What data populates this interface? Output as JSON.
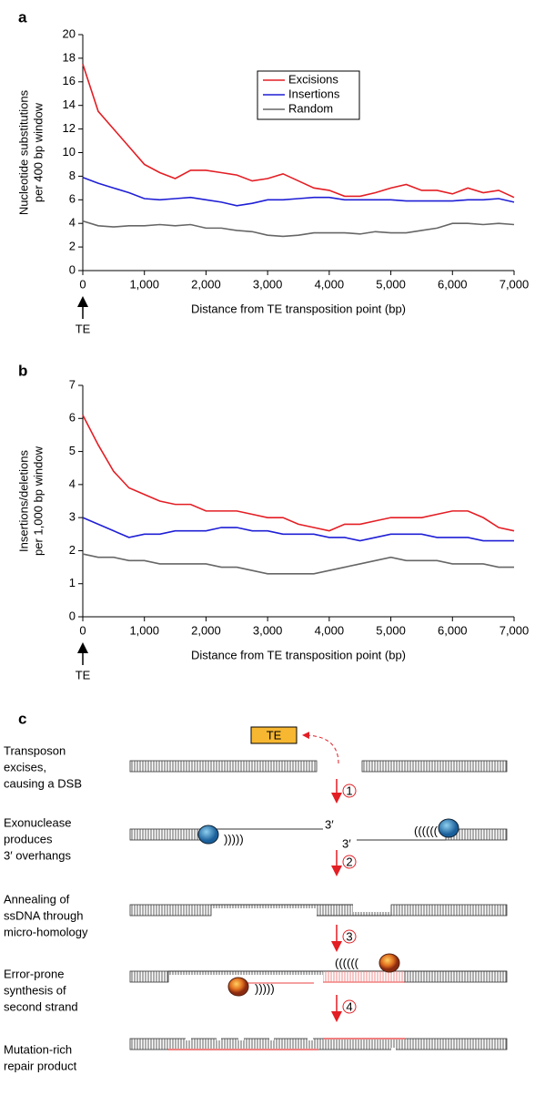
{
  "chart_data": [
    {
      "type": "line",
      "panel": "a",
      "ylabel": [
        "Nucleotide substitutions",
        "per 400 bp window"
      ],
      "xlabel": "Distance from TE transposition point (bp)",
      "annotation": "TE",
      "x": [
        0,
        250,
        500,
        750,
        1000,
        1250,
        1500,
        1750,
        2000,
        2250,
        2500,
        2750,
        3000,
        3250,
        3500,
        3750,
        4000,
        4250,
        4500,
        4750,
        5000,
        5250,
        5500,
        5750,
        6000,
        6250,
        6500,
        6750,
        7000
      ],
      "series": [
        {
          "name": "Excisions",
          "color": "#e31e24",
          "values": [
            17.5,
            13.5,
            12,
            10.5,
            9,
            8.3,
            7.8,
            8.5,
            8.5,
            8.3,
            8.1,
            7.6,
            7.8,
            8.2,
            7.6,
            7.0,
            6.8,
            6.3,
            6.3,
            6.6,
            7.0,
            7.3,
            6.8,
            6.8,
            6.5,
            7.0,
            6.6,
            6.8,
            6.2
          ]
        },
        {
          "name": "Insertions",
          "color": "#1f1fd6",
          "values": [
            7.9,
            7.4,
            7.0,
            6.6,
            6.1,
            6.0,
            6.1,
            6.2,
            6.0,
            5.8,
            5.5,
            5.7,
            6.0,
            6.0,
            6.1,
            6.2,
            6.2,
            6.0,
            6.0,
            6.0,
            6.0,
            5.9,
            5.9,
            5.9,
            5.9,
            6.0,
            6.0,
            6.1,
            5.8
          ]
        },
        {
          "name": "Random",
          "color": "#666666",
          "values": [
            4.2,
            3.8,
            3.7,
            3.8,
            3.8,
            3.9,
            3.8,
            3.9,
            3.6,
            3.6,
            3.4,
            3.3,
            3.0,
            2.9,
            3.0,
            3.2,
            3.2,
            3.2,
            3.1,
            3.3,
            3.2,
            3.2,
            3.4,
            3.6,
            4.0,
            4.0,
            3.9,
            4.0,
            3.9
          ]
        }
      ],
      "xlim": [
        0,
        7000
      ],
      "xticks": [
        0,
        {
          "value": 1000,
          "label": "1,000"
        },
        {
          "value": 2000,
          "label": "2,000"
        },
        {
          "value": 3000,
          "label": "3,000"
        },
        {
          "value": 4000,
          "label": "4,000"
        },
        {
          "value": 5000,
          "label": "5,000"
        },
        {
          "value": 6000,
          "label": "6,000"
        },
        {
          "value": 7000,
          "label": "7,000"
        }
      ],
      "ylim": [
        0,
        20
      ],
      "yticks": [
        0,
        2,
        4,
        6,
        8,
        10,
        12,
        14,
        16,
        18,
        20
      ],
      "legend": "upper center"
    },
    {
      "type": "line",
      "panel": "b",
      "ylabel": [
        "Insertions/deletions",
        "per 1,000 bp window"
      ],
      "xlabel": "Distance from TE transposition point (bp)",
      "annotation": "TE",
      "x": [
        0,
        250,
        500,
        750,
        1000,
        1250,
        1500,
        1750,
        2000,
        2250,
        2500,
        2750,
        3000,
        3250,
        3500,
        3750,
        4000,
        4250,
        4500,
        4750,
        5000,
        5250,
        5500,
        5750,
        6000,
        6250,
        6500,
        6750,
        7000
      ],
      "series": [
        {
          "color": "#e31e24",
          "values": [
            6.1,
            5.2,
            4.4,
            3.9,
            3.7,
            3.5,
            3.4,
            3.4,
            3.2,
            3.2,
            3.2,
            3.1,
            3.0,
            3.0,
            2.8,
            2.7,
            2.6,
            2.8,
            2.8,
            2.9,
            3.0,
            3.0,
            3.0,
            3.1,
            3.2,
            3.2,
            3.0,
            2.7,
            2.6
          ]
        },
        {
          "color": "#1f1fd6",
          "values": [
            3.0,
            2.8,
            2.6,
            2.4,
            2.5,
            2.5,
            2.6,
            2.6,
            2.6,
            2.7,
            2.7,
            2.6,
            2.6,
            2.5,
            2.5,
            2.5,
            2.4,
            2.4,
            2.3,
            2.4,
            2.5,
            2.5,
            2.5,
            2.4,
            2.4,
            2.4,
            2.3,
            2.3,
            2.3
          ]
        },
        {
          "color": "#666666",
          "values": [
            1.9,
            1.8,
            1.8,
            1.7,
            1.7,
            1.6,
            1.6,
            1.6,
            1.6,
            1.5,
            1.5,
            1.4,
            1.3,
            1.3,
            1.3,
            1.3,
            1.4,
            1.5,
            1.6,
            1.7,
            1.8,
            1.7,
            1.7,
            1.7,
            1.6,
            1.6,
            1.6,
            1.5,
            1.5
          ]
        }
      ],
      "xlim": [
        0,
        7000
      ],
      "xticks": [
        0,
        {
          "value": 1000,
          "label": "1,000"
        },
        {
          "value": 2000,
          "label": "2,000"
        },
        {
          "value": 3000,
          "label": "3,000"
        },
        {
          "value": 4000,
          "label": "4,000"
        },
        {
          "value": 5000,
          "label": "5,000"
        },
        {
          "value": 6000,
          "label": "6,000"
        },
        {
          "value": 7000,
          "label": "7,000"
        }
      ],
      "ylim": [
        0,
        7
      ],
      "yticks": [
        0,
        1,
        2,
        3,
        4,
        5,
        6,
        7
      ]
    }
  ],
  "diagram": {
    "panel": "c",
    "te_box": "TE",
    "overhang_left": "3′",
    "overhang_right": "3′",
    "steps": [
      {
        "lines": [
          "Transposon",
          "excises,",
          "causing a DSB"
        ]
      },
      {
        "lines": [
          "Exonuclease",
          "produces",
          "3′ overhangs"
        ]
      },
      {
        "lines": [
          "Annealing of",
          "ssDNA through",
          "micro-homology"
        ]
      },
      {
        "lines": [
          "Error-prone",
          "synthesis of",
          "second strand"
        ]
      },
      {
        "lines": [
          "Mutation-rich",
          "repair product"
        ]
      }
    ],
    "step_numbers": [
      "1",
      "2",
      "3",
      "4"
    ]
  }
}
